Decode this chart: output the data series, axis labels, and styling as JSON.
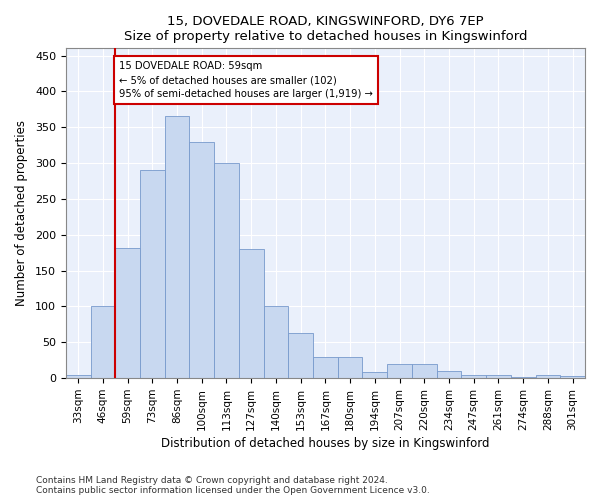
{
  "title": "15, DOVEDALE ROAD, KINGSWINFORD, DY6 7EP",
  "subtitle": "Size of property relative to detached houses in Kingswinford",
  "xlabel": "Distribution of detached houses by size in Kingswinford",
  "ylabel": "Number of detached properties",
  "footnote1": "Contains HM Land Registry data © Crown copyright and database right 2024.",
  "footnote2": "Contains public sector information licensed under the Open Government Licence v3.0.",
  "annotation_title": "15 DOVEDALE ROAD: 59sqm",
  "annotation_line2": "← 5% of detached houses are smaller (102)",
  "annotation_line3": "95% of semi-detached houses are larger (1,919) →",
  "bar_color": "#c8d8f0",
  "bar_edge_color": "#7799cc",
  "vline_color": "#cc0000",
  "categories": [
    "33sqm",
    "46sqm",
    "59sqm",
    "73sqm",
    "86sqm",
    "100sqm",
    "113sqm",
    "127sqm",
    "140sqm",
    "153sqm",
    "167sqm",
    "180sqm",
    "194sqm",
    "207sqm",
    "220sqm",
    "234sqm",
    "247sqm",
    "261sqm",
    "274sqm",
    "288sqm",
    "301sqm"
  ],
  "values": [
    5,
    100,
    182,
    290,
    365,
    330,
    300,
    180,
    100,
    63,
    30,
    30,
    8,
    20,
    20,
    10,
    5,
    5,
    2,
    5,
    3
  ],
  "ylim": [
    0,
    460
  ],
  "yticks": [
    0,
    50,
    100,
    150,
    200,
    250,
    300,
    350,
    400,
    450
  ],
  "bg_color": "#eaf0fb",
  "grid_color": "#ffffff",
  "vline_index": 1.5
}
